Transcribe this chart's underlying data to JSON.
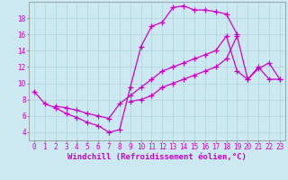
{
  "background_color": "#cce8f0",
  "grid_color": "#aad4dd",
  "line_color": "#cc00cc",
  "marker": "+",
  "marker_size": 4,
  "line_width": 0.9,
  "xlabel": "Windchill (Refroidissement éolien,°C)",
  "xlabel_fontsize": 6.5,
  "tick_fontsize": 5.5,
  "xlim": [
    -0.5,
    23.5
  ],
  "ylim": [
    3.0,
    20.0
  ],
  "yticks": [
    4,
    6,
    8,
    10,
    12,
    14,
    16,
    18
  ],
  "xticks": [
    0,
    1,
    2,
    3,
    4,
    5,
    6,
    7,
    8,
    9,
    10,
    11,
    12,
    13,
    14,
    15,
    16,
    17,
    18,
    19,
    20,
    21,
    22,
    23
  ],
  "series": [
    {
      "x": [
        0,
        1,
        2,
        3,
        4,
        5,
        6,
        7,
        8,
        9,
        10,
        11,
        12,
        13,
        14,
        15,
        16,
        17,
        18,
        19
      ],
      "y": [
        9.0,
        7.5,
        7.0,
        6.3,
        5.8,
        5.2,
        4.8,
        4.0,
        4.3,
        9.5,
        14.5,
        17.0,
        17.5,
        19.3,
        19.5,
        19.0,
        19.0,
        18.8,
        18.5,
        16.0
      ]
    },
    {
      "x": [
        2,
        3,
        4,
        5,
        6,
        7,
        8,
        9,
        10,
        11,
        12,
        13,
        14,
        15,
        16,
        17,
        18,
        19,
        20,
        21,
        22,
        23
      ],
      "y": [
        7.2,
        7.0,
        6.7,
        6.3,
        6.0,
        5.7,
        7.5,
        8.5,
        9.5,
        10.5,
        11.5,
        12.0,
        12.5,
        13.0,
        13.5,
        14.0,
        15.8,
        11.5,
        10.5,
        12.0,
        10.5,
        10.5
      ]
    },
    {
      "x": [
        9,
        10,
        11,
        12,
        13,
        14,
        15,
        16,
        17,
        18,
        19,
        20,
        21,
        22,
        23
      ],
      "y": [
        7.8,
        8.0,
        8.5,
        9.5,
        10.0,
        10.5,
        11.0,
        11.5,
        12.0,
        13.0,
        15.8,
        10.5,
        11.8,
        12.5,
        10.5
      ]
    }
  ]
}
